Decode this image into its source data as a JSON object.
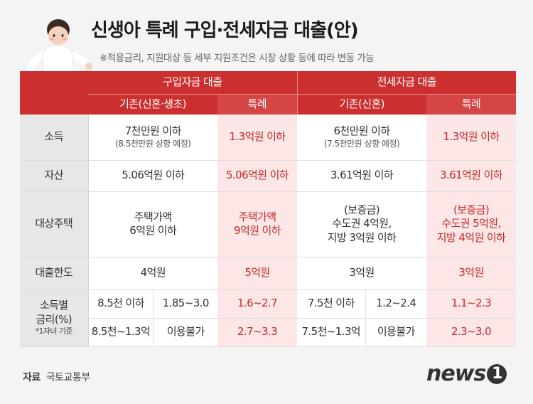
{
  "title": "신생아 특례 구입·전세자금 대출(안)",
  "subtitle": "※적용금리, 지원대상 등 세부 지원조건은 시장 상황 등에 따라 변동 가능",
  "headers": {
    "purchase": "구입자금 대출",
    "jeonse": "전세자금 대출",
    "purchase_existing": "기존(신혼·생초)",
    "purchase_special": "특례",
    "jeonse_existing": "기존(신혼)",
    "jeonse_special": "특례"
  },
  "rows": {
    "income": {
      "label": "소득",
      "p_existing": "7천만원 이하",
      "p_existing_note": "(8.5천만원 상향 예정)",
      "p_special": "1.3억원 이하",
      "j_existing": "6천만원 이하",
      "j_existing_note": "(7.5천만원 상향 예정)",
      "j_special": "1.3억원 이하"
    },
    "asset": {
      "label": "자산",
      "p_existing": "5.06억원 이하",
      "p_special": "5.06억원 이하",
      "j_existing": "3.61억원 이하",
      "j_special": "3.61억원 이하"
    },
    "housing": {
      "label": "대상주택",
      "p_existing_1": "주택가액",
      "p_existing_2": "6억원 이하",
      "p_special_1": "주택가액",
      "p_special_2": "9억원 이하",
      "j_existing_1": "(보증금)",
      "j_existing_2": "수도권 4억원,",
      "j_existing_3": "지방 3억원 이하",
      "j_special_1": "(보증금)",
      "j_special_2": "수도권 5억원,",
      "j_special_3": "지방 4억원 이하"
    },
    "limit": {
      "label": "대출한도",
      "p_existing": "4억원",
      "p_special": "5억원",
      "j_existing": "3억원",
      "j_special": "3억원"
    },
    "rate": {
      "label_1": "소득별",
      "label_2": "금리(%)",
      "label_note": "*1자녀 기준",
      "r1": {
        "p_income": "8.5천 이하",
        "p_rate": "1.85~3.0",
        "p_special": "1.6~2.7",
        "j_income": "7.5천 이하",
        "j_rate": "1.2~2.4",
        "j_special": "1.1~2.3"
      },
      "r2": {
        "p_income": "8.5천~1.3억",
        "p_rate": "이용불가",
        "p_special": "2.7~3.3",
        "j_income": "7.5천~1.3억",
        "j_rate": "이용불가",
        "j_special": "2.3~3.0"
      }
    }
  },
  "footer": {
    "source_label": "자료",
    "source": "국토교통부",
    "logo_text": "news",
    "logo_num": "1"
  }
}
